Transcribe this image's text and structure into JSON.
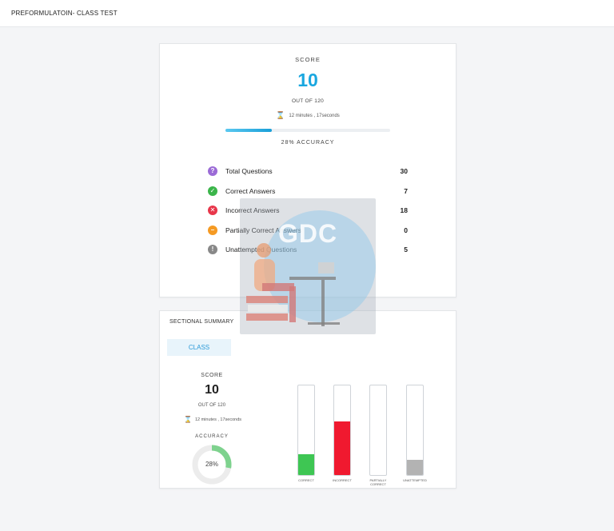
{
  "header": {
    "title": "PREFORMULATOIN- CLASS TEST"
  },
  "score_card": {
    "score_label": "SCORE",
    "score": "10",
    "out_of": "OUT OF 120",
    "time": "12 minutes , 17seconds",
    "accuracy_fraction": 0.28,
    "accuracy_label": "28% ACCURACY",
    "stats": [
      {
        "icon": "question-icon",
        "symbol": "?",
        "color": "#9b6bd6",
        "label": "Total Questions",
        "value": "30"
      },
      {
        "icon": "check-icon",
        "symbol": "✓",
        "color": "#3bb54a",
        "label": "Correct Answers",
        "value": "7"
      },
      {
        "icon": "cross-icon",
        "symbol": "✕",
        "color": "#e8364a",
        "label": "Incorrect Answers",
        "value": "18"
      },
      {
        "icon": "partial-icon",
        "symbol": "–",
        "color": "#f59a23",
        "label": "Partially Correct Answers",
        "value": "0"
      },
      {
        "icon": "info-icon",
        "symbol": "!",
        "color": "#888888",
        "label": "Unattempted Questions",
        "value": "5"
      }
    ]
  },
  "sectional": {
    "title": "SECTIONAL SUMMARY",
    "tab": "CLASS",
    "score_label": "SCORE",
    "score": "10",
    "out_of": "OUT OF 120",
    "time": "12 minutes , 17seconds",
    "accuracy_label": "ACCURACY",
    "accuracy_text": "28%",
    "accuracy_fraction": 0.28,
    "accuracy_color": "#7ed28e",
    "bars": [
      {
        "label": "CORRECT",
        "value": 7,
        "max": 30,
        "color": "#3ec653"
      },
      {
        "label": "INCORRECT",
        "value": 18,
        "max": 30,
        "color": "#f0192f"
      },
      {
        "label": "PARTIALLY CORRECT",
        "value": 0,
        "max": 30,
        "color": "#f59a23"
      },
      {
        "label": "UNATTEMPTED",
        "value": 5,
        "max": 30,
        "color": "#b3b3b3"
      }
    ]
  },
  "watermark": {
    "text": "GDC"
  }
}
